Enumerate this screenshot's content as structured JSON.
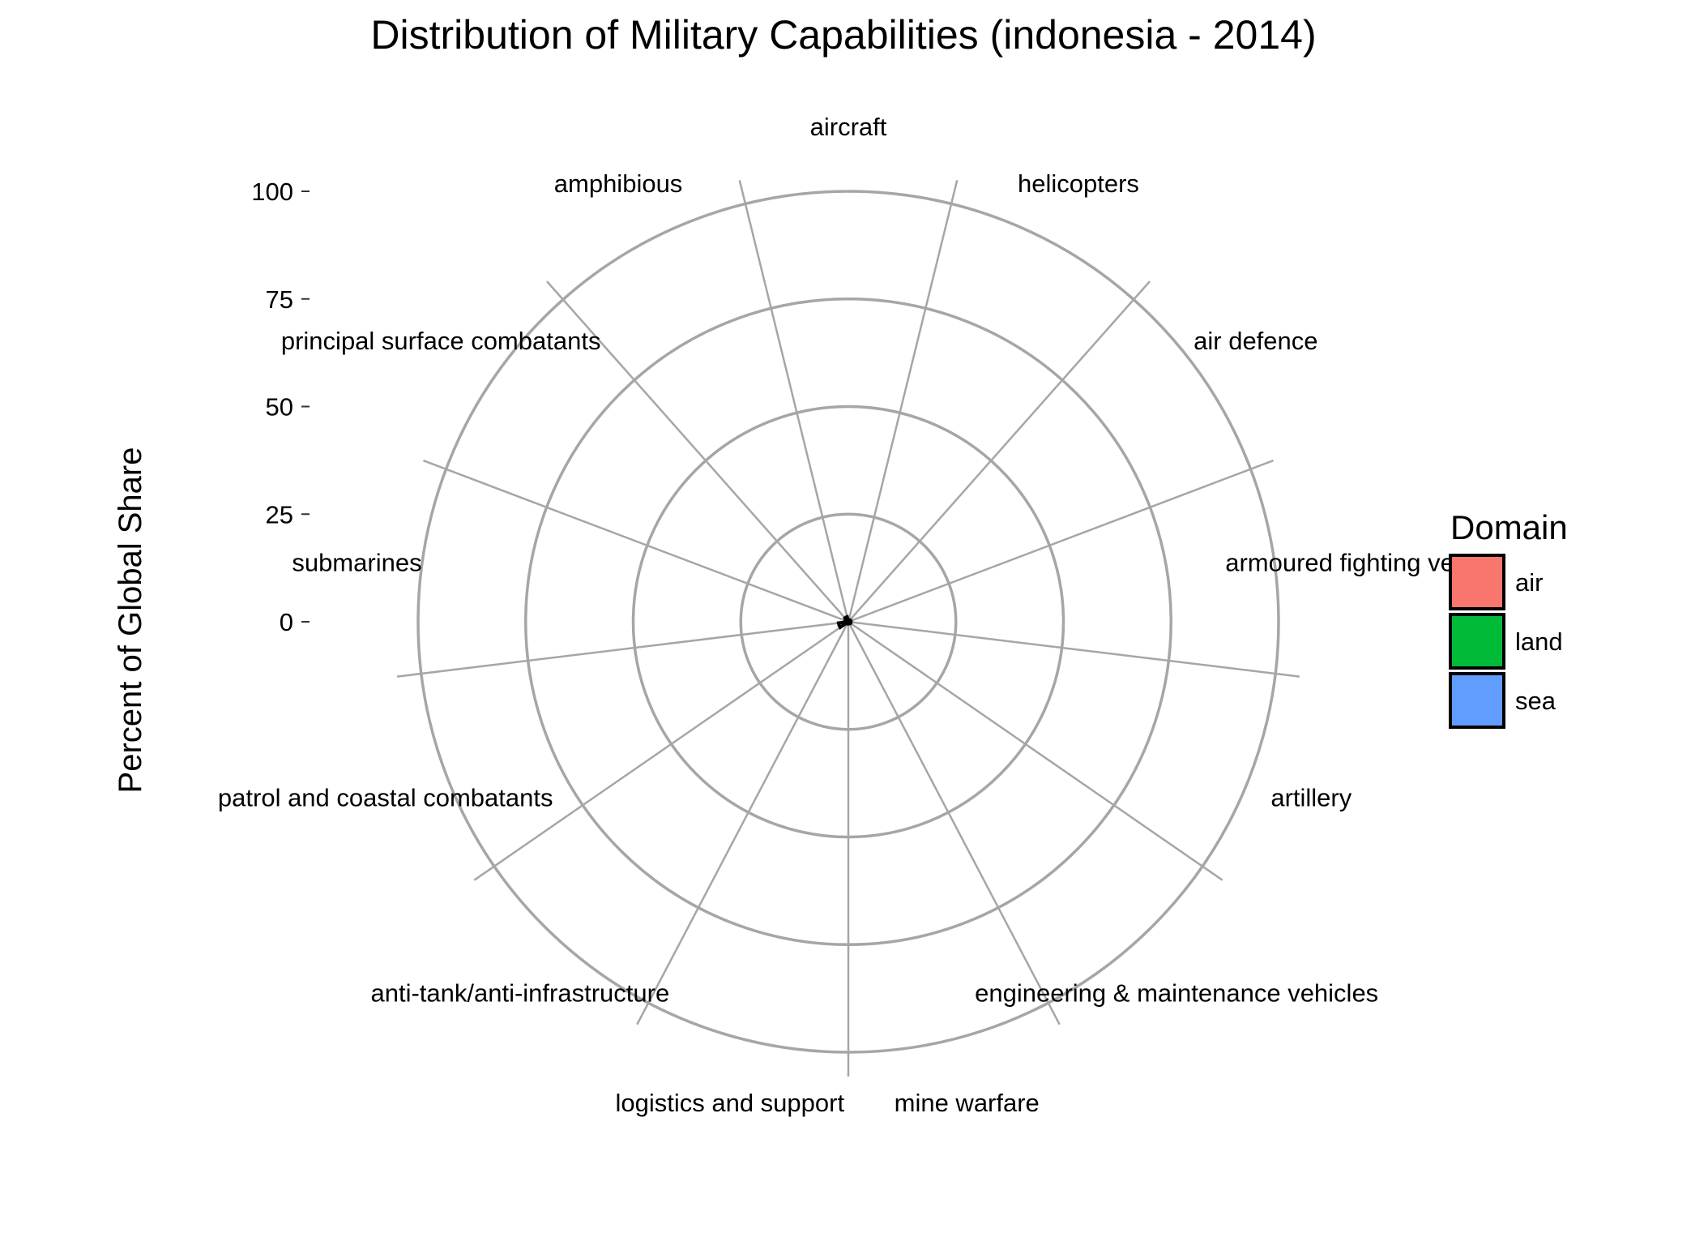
{
  "chart_data": {
    "type": "bar",
    "coord": "polar",
    "title": "Distribution of Military Capabilities (indonesia - 2014)",
    "xlabel": "",
    "ylabel": "Percent of Global Share",
    "ylim": [
      0,
      100
    ],
    "yticks": [
      0,
      25,
      50,
      75,
      100
    ],
    "grid": true,
    "legend": {
      "title": "Domain",
      "position": "right",
      "entries": [
        {
          "label": "air",
          "color": "#F8766D"
        },
        {
          "label": "land",
          "color": "#00BA38"
        },
        {
          "label": "sea",
          "color": "#619CFF"
        }
      ]
    },
    "categories": [
      {
        "label": "aircraft",
        "domain": "air",
        "value": 0.5
      },
      {
        "label": "helicopters",
        "domain": "air",
        "value": 0.5
      },
      {
        "label": "air defence",
        "domain": "land",
        "value": 0.4
      },
      {
        "label": "armoured fighting ve",
        "domain": "land",
        "value": 0.6
      },
      {
        "label": "artillery",
        "domain": "land",
        "value": 0.6
      },
      {
        "label": "engineering & maintenance vehicles",
        "domain": "land",
        "value": 0.3
      },
      {
        "label": "mine warfare",
        "domain": "sea",
        "value": 0.5
      },
      {
        "label": "logistics and support",
        "domain": "sea",
        "value": 0.4
      },
      {
        "label": "anti-tank/anti-infrastructure",
        "domain": "land",
        "value": 0.4
      },
      {
        "label": "patrol and coastal combatants",
        "domain": "sea",
        "value": 2.3
      },
      {
        "label": "submarines",
        "domain": "sea",
        "value": 0.5
      },
      {
        "label": "principal surface combatants",
        "domain": "sea",
        "value": 0.8
      },
      {
        "label": "amphibious",
        "domain": "sea",
        "value": 1.2
      }
    ]
  }
}
